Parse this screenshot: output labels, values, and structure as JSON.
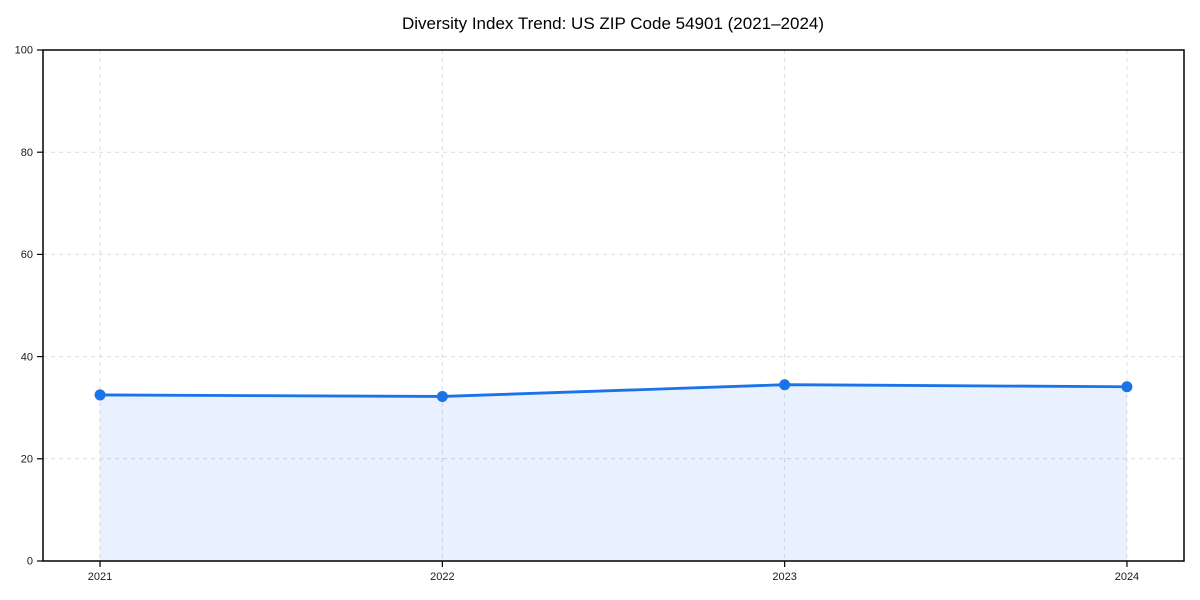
{
  "chart_data": {
    "type": "line",
    "title": "Diversity Index Trend: US ZIP Code 54901 (2021–2024)",
    "categories": [
      "2021",
      "2022",
      "2023",
      "2024"
    ],
    "series": [
      {
        "name": "Diversity Index",
        "values": [
          32.5,
          32.2,
          34.5,
          34.1
        ]
      }
    ],
    "xlabel": "",
    "ylabel": "",
    "ylim": [
      0,
      100
    ],
    "yticks": [
      0,
      20,
      40,
      60,
      80,
      100
    ],
    "grid": true,
    "grid_style": "dashed",
    "legend": false,
    "marker": "circle",
    "area_fill": true,
    "colors": {
      "line": "#1a73e8",
      "marker": "#1a73e8",
      "area_fill": "#1a73e8",
      "area_fill_opacity": 0.1,
      "gridline": "#dcdcdc",
      "spine": "#000000",
      "title_text": "#000000",
      "tick_text": "#1a1a1a",
      "background": "#ffffff"
    }
  }
}
